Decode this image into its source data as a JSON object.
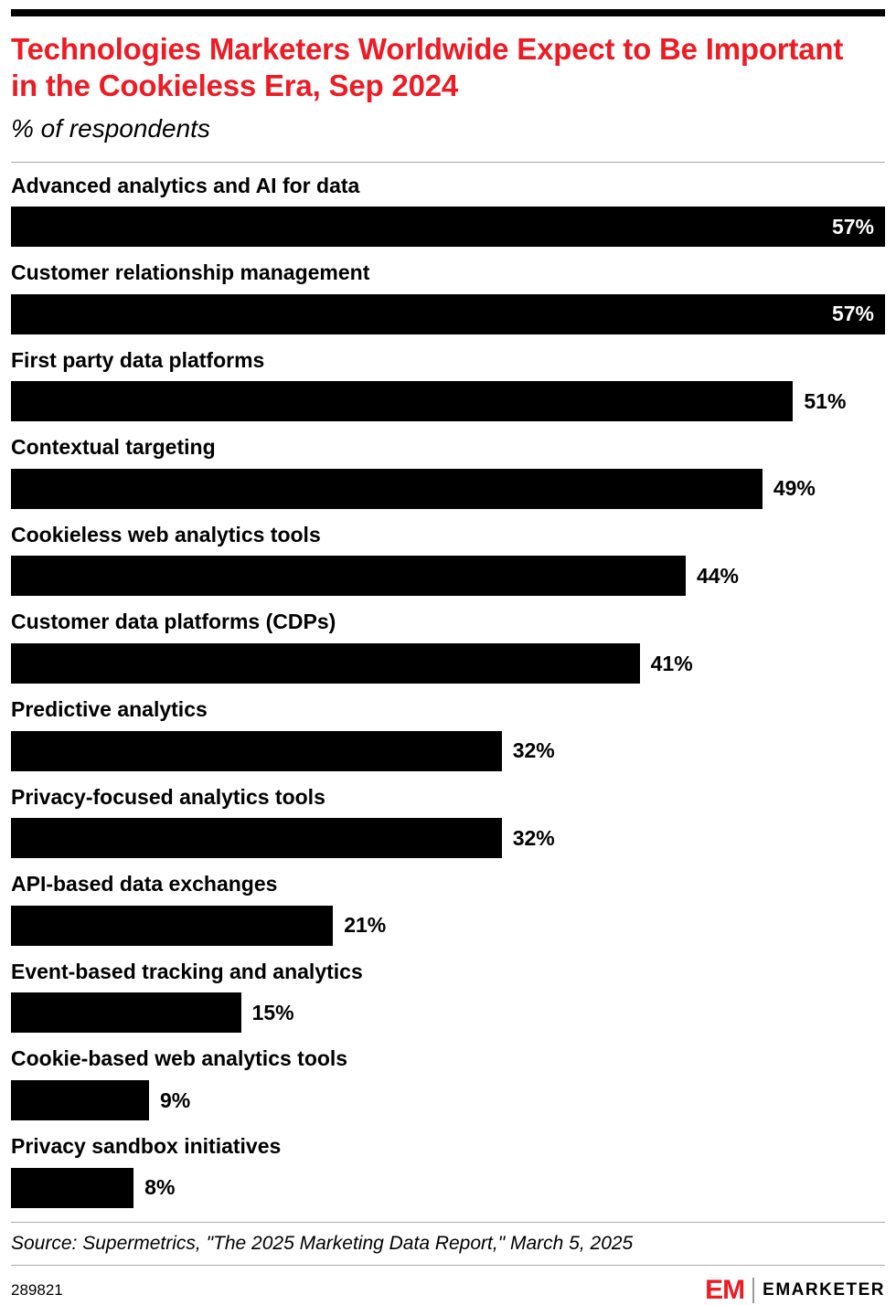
{
  "header": {
    "title": "Technologies Marketers Worldwide Expect to Be Important in the Cookieless Era, Sep 2024",
    "subtitle": "% of respondents"
  },
  "chart_data": {
    "type": "bar",
    "orientation": "horizontal",
    "title": "Technologies Marketers Worldwide Expect to Be Important in the Cookieless Era, Sep 2024",
    "subtitle": "% of respondents",
    "unit": "%",
    "categories": [
      "Advanced analytics and AI for data",
      "Customer relationship management",
      "First party data platforms",
      "Contextual targeting",
      "Cookieless web analytics tools",
      "Customer data platforms (CDPs)",
      "Predictive analytics",
      "Privacy-focused analytics tools",
      "API-based data exchanges",
      "Event-based tracking and analytics",
      "Cookie-based web analytics tools",
      "Privacy sandbox initiatives"
    ],
    "values": [
      57,
      57,
      51,
      49,
      44,
      41,
      32,
      32,
      21,
      15,
      9,
      8
    ],
    "xlim": [
      0,
      57
    ],
    "bar_color": "#000000",
    "grid": false,
    "legend": "none",
    "value_label_format": "{value}%"
  },
  "footer": {
    "source": "Source: Supermetrics, \"The 2025 Marketing Data Report,\" March 5, 2025",
    "chart_id": "289821",
    "brand": {
      "logo": "EM",
      "name": "EMARKETER"
    }
  },
  "colors": {
    "accent_red": "#ed1b24",
    "bar": "#000000",
    "background": "#ffffff"
  }
}
